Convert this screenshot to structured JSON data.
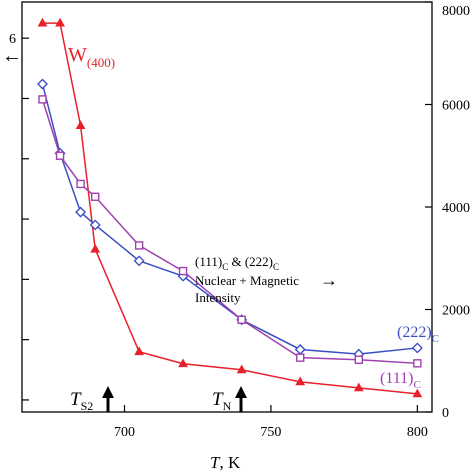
{
  "chart_data": {
    "type": "line",
    "title": "",
    "xlabel_T": "T",
    "xlabel_unit": ", K",
    "ylabel_left": "",
    "ylabel_right": "",
    "xlim": [
      665,
      805
    ],
    "ylim_left": [
      1.8,
      8.6
    ],
    "ylim_right": [
      0,
      8000
    ],
    "x_ticks": [
      700,
      750,
      800
    ],
    "y_right_ticks": [
      0,
      2000,
      4000,
      6000,
      8000
    ],
    "y_left_tick_marks": [
      2,
      3,
      4,
      5,
      6,
      7,
      8
    ],
    "y_left_tick_labels": [
      "",
      "",
      "",
      "",
      "",
      "",
      "6"
    ],
    "grid": false,
    "series": [
      {
        "name": "W(400)",
        "axis": "left",
        "marker": "triangle",
        "color": "#e8202a",
        "x": [
          672,
          678,
          685,
          690,
          705,
          720,
          740,
          760,
          780,
          800
        ],
        "y": [
          8.25,
          8.25,
          6.55,
          4.5,
          2.8,
          2.6,
          2.5,
          2.3,
          2.2,
          2.1
        ]
      },
      {
        "name": "(222)C",
        "axis": "right",
        "marker": "diamond",
        "color": "#3a4fc4",
        "x": [
          672,
          678,
          685,
          690,
          705,
          720,
          740,
          760,
          780,
          800
        ],
        "y": [
          6400,
          5050,
          3900,
          3650,
          2950,
          2650,
          1800,
          1220,
          1130,
          1250
        ]
      },
      {
        "name": "(111)C",
        "axis": "right",
        "marker": "square",
        "color": "#a040b0",
        "x": [
          672,
          678,
          685,
          690,
          705,
          720,
          740,
          760,
          780,
          800
        ],
        "y": [
          6100,
          5000,
          4450,
          4200,
          3250,
          2750,
          1800,
          1060,
          1020,
          950
        ]
      }
    ],
    "legend_arrow": "←",
    "label_w": "W",
    "label_w_sub": "(400)",
    "label_222": "(222)",
    "label_222_sub": "C",
    "label_111": "(111)",
    "label_111_sub": "C",
    "note_line1": "(111)",
    "note_line1_sub": "C",
    "note_line1_mid": " & (222)",
    "note_line1_sub2": "C",
    "note_line2": "Nuclear + Magnetic",
    "note_arrow": "→",
    "note_line3": "Intensity",
    "marker_ts2": {
      "x": 700,
      "label": "T",
      "sub": "S2"
    },
    "marker_tn": {
      "x": 750,
      "label": "T",
      "sub": "N"
    }
  }
}
